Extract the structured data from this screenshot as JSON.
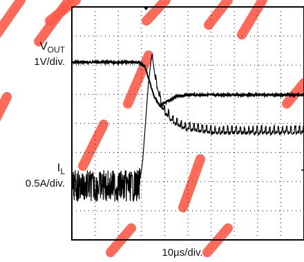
{
  "chart_data": {
    "type": "line",
    "title": "",
    "xlabel": "10µs/div.",
    "grid": true,
    "divisions": {
      "x": 10,
      "y": 8
    },
    "trigger_marker_x_div": 3.2,
    "series": [
      {
        "channel_symbol": "V",
        "channel_subscript": "OUT",
        "scale": "1V/div.",
        "color": "#000000",
        "points": [
          [
            0,
            1.9
          ],
          [
            1.5,
            1.9
          ],
          [
            2.9,
            1.9
          ],
          [
            3.15,
            2.05
          ],
          [
            3.55,
            3.1
          ],
          [
            3.8,
            3.4
          ],
          [
            4.1,
            3.25
          ],
          [
            4.6,
            3.05
          ],
          [
            5.2,
            3.02
          ],
          [
            7,
            3.02
          ],
          [
            10,
            3.02
          ]
        ],
        "noise": 0.03
      },
      {
        "channel_symbol": "I",
        "channel_subscript": "L",
        "scale": "0.5A/div.",
        "color": "#000000",
        "points": [
          [
            0,
            6.15
          ],
          [
            2.9,
            6.15
          ],
          [
            3.05,
            5.3
          ],
          [
            3.3,
            2.6
          ],
          [
            3.45,
            1.6
          ],
          [
            3.6,
            2.5
          ],
          [
            3.9,
            3.5
          ],
          [
            4.3,
            3.9
          ],
          [
            4.8,
            4.15
          ],
          [
            6,
            4.3
          ],
          [
            10,
            4.3
          ]
        ],
        "noise": 0.3
      }
    ],
    "channel_scales": [
      "1V/div.",
      "0.5A/div."
    ],
    "watermark_color": "#ff5a4a"
  }
}
